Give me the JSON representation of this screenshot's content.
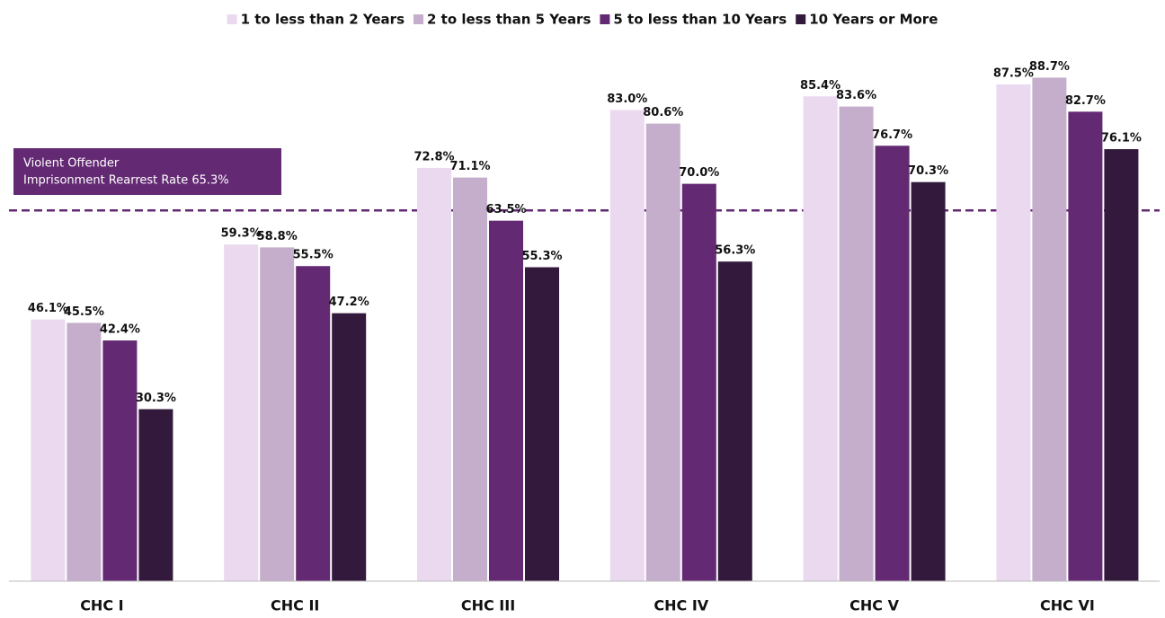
{
  "chart_data": {
    "type": "bar",
    "categories": [
      "CHC I",
      "CHC II",
      "CHC III",
      "CHC IV",
      "CHC V",
      "CHC VI"
    ],
    "series": [
      {
        "name": "1 to less than 2 Years",
        "color": "#ead9ef",
        "values": [
          46.1,
          59.3,
          72.8,
          83.0,
          85.4,
          87.5
        ],
        "value_labels": [
          "46.1%",
          "59.3%",
          "72.8%",
          "83.0%",
          "85.4%",
          "87.5%"
        ]
      },
      {
        "name": "2 to less than 5 Years",
        "color": "#c5aecb",
        "values": [
          45.5,
          58.8,
          71.1,
          80.6,
          83.6,
          88.7
        ],
        "value_labels": [
          "45.5%",
          "58.8%",
          "71.1%",
          "80.6%",
          "83.6%",
          "88.7%"
        ]
      },
      {
        "name": "5 to less than 10 Years",
        "color": "#632a73",
        "values": [
          42.4,
          55.5,
          63.5,
          70.0,
          76.7,
          82.7
        ],
        "value_labels": [
          "42.4%",
          "55.5%",
          "63.5%",
          "70.0%",
          "76.7%",
          "82.7%"
        ]
      },
      {
        "name": "10 Years or More",
        "color": "#331a3c",
        "values": [
          30.3,
          47.2,
          55.3,
          56.3,
          70.3,
          76.1
        ],
        "value_labels": [
          "30.3%",
          "47.2%",
          "55.3%",
          "56.3%",
          "70.3%",
          "76.1%"
        ]
      }
    ],
    "ylim": [
      0,
      100
    ],
    "legend": "top",
    "reference_line": {
      "value": 65.3,
      "color": "#632a73",
      "label_lines": [
        "Violent Offender",
        "Imprisonment Rearrest Rate 65.3%"
      ]
    }
  }
}
